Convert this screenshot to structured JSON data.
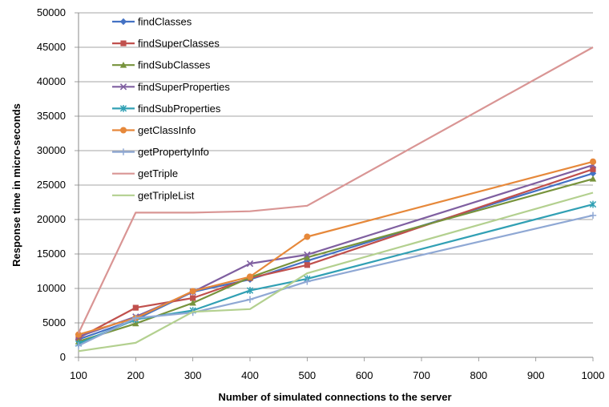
{
  "chart_data": {
    "type": "line",
    "xlabel": "Number of simulated  connections to the server",
    "ylabel": "Response time in micro-seconds",
    "x": [
      100,
      200,
      300,
      400,
      500,
      1000
    ],
    "x_ticks": [
      "100",
      "200",
      "300",
      "400",
      "500",
      "600",
      "700",
      "800",
      "900",
      "1000"
    ],
    "y_ticks": [
      "0",
      "5000",
      "10000",
      "15000",
      "20000",
      "25000",
      "30000",
      "35000",
      "40000",
      "45000",
      "50000"
    ],
    "xlim": [
      100,
      1000
    ],
    "ylim": [
      0,
      50000
    ],
    "grid": "horizontal",
    "legend_position": "top-left",
    "series": [
      {
        "name": "findClasses",
        "color": "#4472c4",
        "marker": "diamond",
        "values": [
          2600,
          5500,
          9500,
          11300,
          14000,
          26700
        ]
      },
      {
        "name": "findSuperClasses",
        "color": "#c0504d",
        "marker": "square",
        "values": [
          2800,
          7200,
          8600,
          11500,
          13400,
          27300
        ]
      },
      {
        "name": "findSubClasses",
        "color": "#77933c",
        "marker": "triangle",
        "values": [
          2300,
          4900,
          7900,
          11600,
          14500,
          25900
        ]
      },
      {
        "name": "findSuperProperties",
        "color": "#7f5fa0",
        "marker": "x",
        "values": [
          3000,
          5900,
          9500,
          13600,
          14900,
          27900
        ]
      },
      {
        "name": "findSubProperties",
        "color": "#31a0b4",
        "marker": "star",
        "values": [
          2000,
          5500,
          6800,
          9700,
          11400,
          22200
        ]
      },
      {
        "name": "getClassInfo",
        "color": "#e6883a",
        "marker": "circle",
        "values": [
          3300,
          5700,
          9600,
          11700,
          17500,
          28400
        ]
      },
      {
        "name": "getPropertyInfo",
        "color": "#8fa8d4",
        "marker": "plus",
        "values": [
          1700,
          5700,
          6500,
          8400,
          11000,
          20600
        ]
      },
      {
        "name": "getTriple",
        "color": "#d99594",
        "marker": "none",
        "values": [
          3500,
          21000,
          21000,
          21200,
          22000,
          45000
        ]
      },
      {
        "name": "getTripleList",
        "color": "#b3d08f",
        "marker": "none",
        "values": [
          900,
          2100,
          6600,
          7000,
          12200,
          23900
        ]
      }
    ]
  }
}
